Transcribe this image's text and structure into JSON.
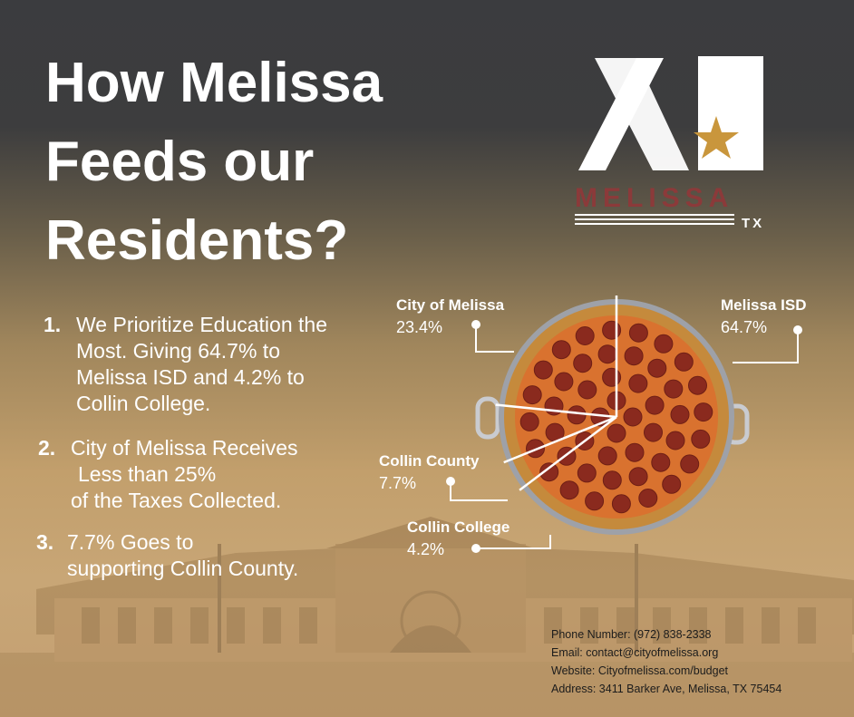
{
  "title": [
    "How Melissa",
    "Feeds our",
    "Residents?"
  ],
  "logo": {
    "name": "MELISSA",
    "state": "TX",
    "mark": "M-star-logo",
    "accent": "#8b3a3a",
    "star": "#c9963c"
  },
  "points": [
    {
      "num": "1.",
      "lines": [
        "We Prioritize Education the",
        "Most. Giving 64.7% to",
        "Melissa ISD and 4.2% to",
        "Collin College."
      ]
    },
    {
      "num": "2.",
      "lines": [
        "City of Melissa Receives",
        "Less than 25%",
        "of the Taxes Collected."
      ]
    },
    {
      "num": "3.",
      "lines": [
        "7.7% Goes to",
        "supporting Collin County."
      ]
    }
  ],
  "chart_data": {
    "type": "pie",
    "title": "",
    "slices": [
      {
        "name": "City of Melissa",
        "value": 23.4,
        "label": "23.4%"
      },
      {
        "name": "Melissa ISD",
        "value": 64.7,
        "label": "64.7%"
      },
      {
        "name": "Collin County",
        "value": 7.7,
        "label": "7.7%"
      },
      {
        "name": "Collin College",
        "value": 4.2,
        "label": "4.2%"
      }
    ],
    "style": "pizza"
  },
  "contact": {
    "phone": "Phone Number: (972) 838-2338",
    "email": "Email: contact@cityofmelissa.org",
    "website": "Website: Cityofmelissa.com/budget",
    "address": "Address: 3411 Barker Ave, Melissa, TX 75454"
  }
}
